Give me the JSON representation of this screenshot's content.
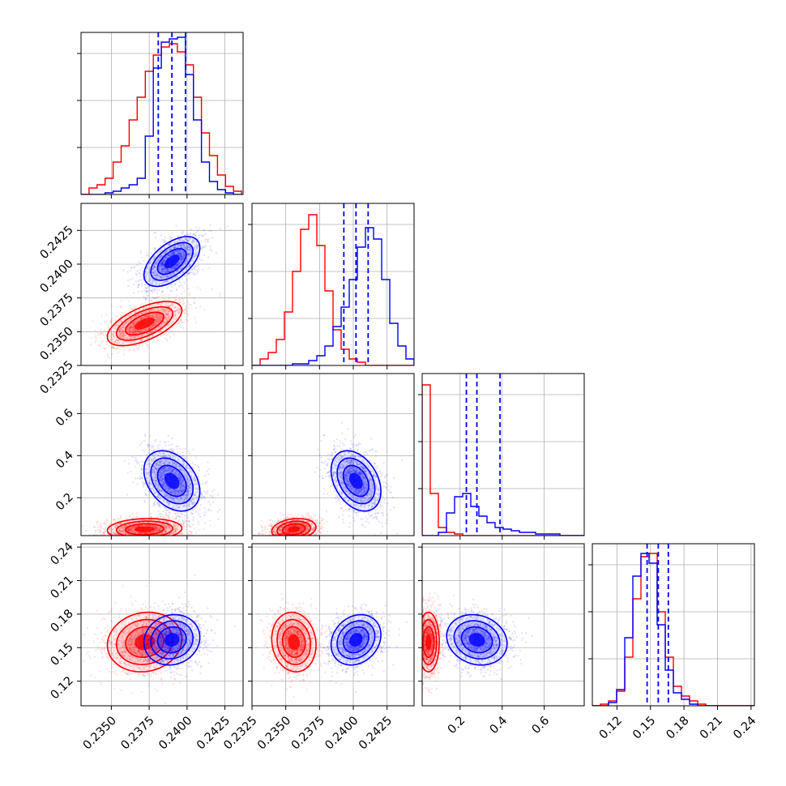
{
  "figure": {
    "type": "corner-plot"
  },
  "colors": {
    "series_a": "#ff0000",
    "series_b": "#0000ff",
    "grid": "#b0b0b0",
    "axes": "#000000"
  },
  "chart_data": {
    "type": "corner",
    "parameters": [
      "",
      "",
      "",
      ""
    ],
    "ranges": [
      [
        0.233,
        0.2437
      ],
      [
        0.2325,
        0.2445
      ],
      [
        0.02,
        0.79
      ],
      [
        0.098,
        0.243
      ]
    ],
    "ticks": [
      [
        0.235,
        0.2375,
        0.24,
        0.2425
      ],
      [
        0.2325,
        0.235,
        0.2375,
        0.24,
        0.2425
      ],
      [
        0.2,
        0.4,
        0.6
      ],
      [
        0.12,
        0.15,
        0.18,
        0.21,
        0.24
      ]
    ],
    "tick_labels": [
      [
        "0.2350",
        "0.2375",
        "0.2400",
        "0.2425"
      ],
      [
        "0.2325",
        "0.2350",
        "0.2375",
        "0.2400",
        "0.2425"
      ],
      [
        "0.2",
        "0.4",
        "0.6"
      ],
      [
        "0.12",
        "0.15",
        "0.18",
        "0.21",
        "0.24"
      ]
    ],
    "series": [
      {
        "color": "#ff0000",
        "medians": [
          0.2372,
          0.2356,
          0.05,
          0.155
        ],
        "sigmas": [
          0.0012,
          0.0008,
          0.025,
          0.013
        ],
        "correlations": {
          "1-0": 0.6,
          "2-0": 0.1,
          "3-0": 0.1,
          "2-1": 0.2,
          "3-1": -0.1,
          "3-2": 0.0
        },
        "histograms": [
          {
            "edges_start": 0.233,
            "bin_width": 0.00053,
            "counts": [
              0.0,
              0.04,
              0.06,
              0.1,
              0.2,
              0.3,
              0.46,
              0.6,
              0.76,
              0.86,
              0.91,
              0.93,
              0.88,
              0.8,
              0.6,
              0.38,
              0.24,
              0.12,
              0.05,
              0.02
            ]
          },
          {
            "edges_start": 0.2325,
            "bin_width": 0.0006,
            "counts": [
              0.0,
              0.04,
              0.08,
              0.16,
              0.33,
              0.58,
              0.84,
              0.93,
              0.74,
              0.46,
              0.22,
              0.1,
              0.04,
              0.02,
              0.0,
              0.0,
              0.0,
              0.0,
              0.0,
              0.0
            ]
          },
          {
            "edges_start": 0.02,
            "bin_width": 0.0385,
            "counts": [
              0.93,
              0.26,
              0.05,
              0.02,
              0.01,
              0.0,
              0.0,
              0.0,
              0.0,
              0.0,
              0.0,
              0.0,
              0.0,
              0.0,
              0.0,
              0.0,
              0.0,
              0.0,
              0.0,
              0.0
            ]
          },
          {
            "edges_start": 0.098,
            "bin_width": 0.00725,
            "counts": [
              0.0,
              0.01,
              0.03,
              0.09,
              0.3,
              0.66,
              0.92,
              0.94,
              0.58,
              0.3,
              0.12,
              0.06,
              0.03,
              0.01,
              0.0,
              0.0,
              0.0,
              0.0,
              0.0,
              0.0
            ]
          }
        ]
      },
      {
        "color": "#0000ff",
        "medians": [
          0.239,
          0.2402,
          0.28,
          0.157
        ],
        "sigmas": [
          0.0009,
          0.0009,
          0.07,
          0.011
        ],
        "correlations": {
          "1-0": 0.55,
          "2-0": -0.35,
          "3-0": 0.1,
          "2-1": -0.35,
          "3-1": 0.2,
          "3-2": -0.15
        },
        "histograms": [
          {
            "edges_start": 0.233,
            "bin_width": 0.00053,
            "counts": [
              0.0,
              0.0,
              0.0,
              0.01,
              0.02,
              0.04,
              0.06,
              0.1,
              0.36,
              0.78,
              0.94,
              0.96,
              0.97,
              0.74,
              0.46,
              0.2,
              0.08,
              0.03,
              0.01,
              0.0
            ]
          },
          {
            "edges_start": 0.2325,
            "bin_width": 0.0006,
            "counts": [
              0.0,
              0.0,
              0.0,
              0.0,
              0.0,
              0.01,
              0.01,
              0.03,
              0.06,
              0.12,
              0.24,
              0.36,
              0.53,
              0.73,
              0.85,
              0.78,
              0.53,
              0.26,
              0.12,
              0.04
            ]
          },
          {
            "edges_start": 0.02,
            "bin_width": 0.0385,
            "counts": [
              0.0,
              0.0,
              0.02,
              0.14,
              0.24,
              0.26,
              0.18,
              0.12,
              0.08,
              0.05,
              0.04,
              0.03,
              0.02,
              0.02,
              0.01,
              0.01,
              0.01,
              0.0,
              0.0,
              0.0
            ]
          },
          {
            "edges_start": 0.098,
            "bin_width": 0.00725,
            "counts": [
              0.0,
              0.0,
              0.02,
              0.1,
              0.42,
              0.8,
              0.94,
              0.88,
              0.5,
              0.22,
              0.08,
              0.04,
              0.01,
              0.0,
              0.0,
              0.0,
              0.0,
              0.0,
              0.0,
              0.0
            ]
          }
        ],
        "quantiles": [
          [
            0.2381,
            0.239,
            0.2399
          ],
          [
            0.2393,
            0.2402,
            0.2411
          ],
          [
            0.23,
            0.28,
            0.39
          ],
          [
            0.147,
            0.157,
            0.166
          ]
        ]
      }
    ]
  }
}
